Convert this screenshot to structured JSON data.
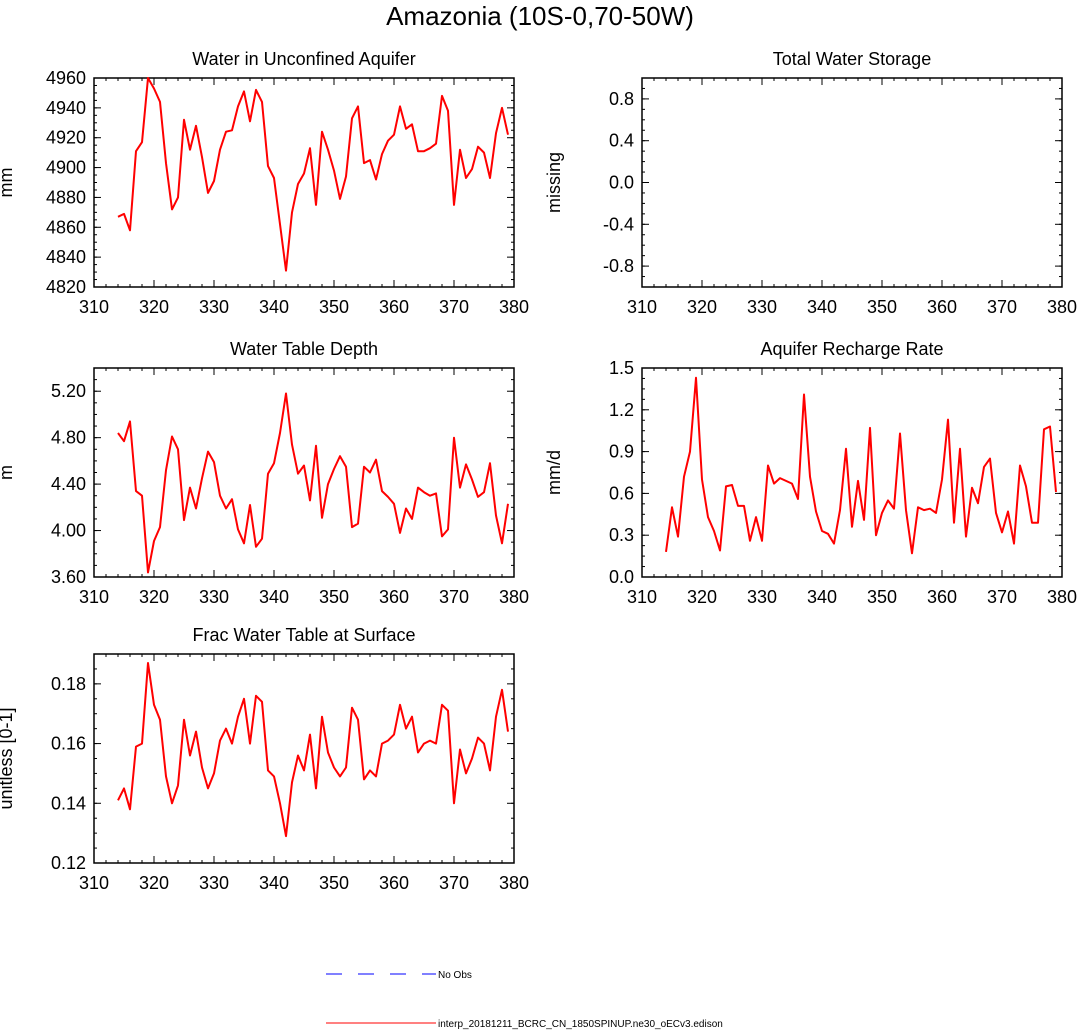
{
  "page_title": "Amazonia (10S-0,70-50W)",
  "colors": {
    "model_line": "#ff0000",
    "obs_line": "#0000ff",
    "axis": "#000000"
  },
  "legend": {
    "obs_label": "No Obs",
    "model_label": "interp_20181211_BCRC_CN_1850SPINUP.ne30_oECv3.edison"
  },
  "chart_data": [
    {
      "type": "line",
      "title": "Water in Unconfined Aquifer",
      "ylabel": "mm",
      "xlim": [
        310,
        380
      ],
      "ylim": [
        4820,
        4960
      ],
      "xticks": [
        310,
        320,
        330,
        340,
        350,
        360,
        370,
        380
      ],
      "yticks": [
        4820,
        4840,
        4860,
        4880,
        4900,
        4920,
        4940,
        4960
      ],
      "ytick_labels": [
        "4820",
        "4840",
        "4860",
        "4880",
        "4900",
        "4920",
        "4940",
        "4960"
      ],
      "series": [
        {
          "x": [
            314,
            315,
            316,
            317,
            318,
            319,
            320,
            321,
            322,
            323,
            324,
            325,
            326,
            327,
            328,
            329,
            330,
            331,
            332,
            333,
            334,
            335,
            336,
            337,
            338,
            339,
            340,
            341,
            342,
            343,
            344,
            345,
            346,
            347,
            348,
            349,
            350,
            351,
            352,
            353,
            354,
            355,
            356,
            357,
            358,
            359,
            360,
            361,
            362,
            363,
            364,
            365,
            366,
            367,
            368,
            369,
            370,
            371,
            372,
            373,
            374,
            375,
            376,
            377,
            378,
            379
          ],
          "y": [
            4867,
            4869,
            4858,
            4911,
            4917,
            4960,
            4953,
            4944,
            4903,
            4872,
            4880,
            4932,
            4912,
            4928,
            4907,
            4883,
            4891,
            4912,
            4924,
            4925,
            4941,
            4951,
            4931,
            4952,
            4944,
            4901,
            4893,
            4862,
            4831,
            4870,
            4889,
            4896,
            4913,
            4875,
            4924,
            4912,
            4898,
            4879,
            4894,
            4933,
            4941,
            4903,
            4905,
            4892,
            4909,
            4918,
            4922,
            4941,
            4926,
            4929,
            4911,
            4911,
            4913,
            4916,
            4948,
            4938,
            4875,
            4912,
            4893,
            4899,
            4914,
            4910,
            4893,
            4923,
            4940,
            4922
          ]
        }
      ]
    },
    {
      "type": "line",
      "title": "Total Water Storage",
      "ylabel": "missing",
      "xlim": [
        310,
        380
      ],
      "ylim": [
        -1,
        1
      ],
      "xticks": [
        310,
        320,
        330,
        340,
        350,
        360,
        370,
        380
      ],
      "yticks": [
        -0.8,
        -0.4,
        0.0,
        0.4,
        0.8
      ],
      "ytick_labels": [
        "-0.8",
        "-0.4",
        "0.0",
        "0.4",
        "0.8"
      ],
      "series": []
    },
    {
      "type": "line",
      "title": "Water Table Depth",
      "ylabel": "m",
      "xlim": [
        310,
        380
      ],
      "ylim": [
        3.6,
        5.4
      ],
      "xticks": [
        310,
        320,
        330,
        340,
        350,
        360,
        370,
        380
      ],
      "yticks": [
        3.6,
        4.0,
        4.4,
        4.8,
        5.2
      ],
      "ytick_labels": [
        "3.60",
        "4.00",
        "4.40",
        "4.80",
        "5.20"
      ],
      "series": [
        {
          "x": [
            314,
            315,
            316,
            317,
            318,
            319,
            320,
            321,
            322,
            323,
            324,
            325,
            326,
            327,
            328,
            329,
            330,
            331,
            332,
            333,
            334,
            335,
            336,
            337,
            338,
            339,
            340,
            341,
            342,
            343,
            344,
            345,
            346,
            347,
            348,
            349,
            350,
            351,
            352,
            353,
            354,
            355,
            356,
            357,
            358,
            359,
            360,
            361,
            362,
            363,
            364,
            365,
            366,
            367,
            368,
            369,
            370,
            371,
            372,
            373,
            374,
            375,
            376,
            377,
            378,
            379
          ],
          "y": [
            4.84,
            4.77,
            4.94,
            4.34,
            4.3,
            3.64,
            3.91,
            4.03,
            4.52,
            4.81,
            4.7,
            4.09,
            4.37,
            4.19,
            4.45,
            4.68,
            4.59,
            4.3,
            4.19,
            4.27,
            4.01,
            3.89,
            4.22,
            3.86,
            3.93,
            4.49,
            4.58,
            4.84,
            5.18,
            4.74,
            4.49,
            4.56,
            4.26,
            4.73,
            4.11,
            4.4,
            4.53,
            4.64,
            4.55,
            4.03,
            4.06,
            4.55,
            4.5,
            4.61,
            4.34,
            4.29,
            4.23,
            3.98,
            4.19,
            4.1,
            4.37,
            4.33,
            4.3,
            4.32,
            3.95,
            4.01,
            4.8,
            4.37,
            4.57,
            4.44,
            4.29,
            4.33,
            4.58,
            4.13,
            3.89,
            4.23
          ]
        }
      ]
    },
    {
      "type": "line",
      "title": "Aquifer Recharge Rate",
      "ylabel": "mm/d",
      "xlim": [
        310,
        380
      ],
      "ylim": [
        0,
        1.5
      ],
      "xticks": [
        310,
        320,
        330,
        340,
        350,
        360,
        370,
        380
      ],
      "yticks": [
        0.0,
        0.3,
        0.6,
        0.9,
        1.2,
        1.5
      ],
      "ytick_labels": [
        "0.0",
        "0.3",
        "0.6",
        "0.9",
        "1.2",
        "1.5"
      ],
      "series": [
        {
          "x": [
            314,
            315,
            316,
            317,
            318,
            319,
            320,
            321,
            322,
            323,
            324,
            325,
            326,
            327,
            328,
            329,
            330,
            331,
            332,
            333,
            334,
            335,
            336,
            337,
            338,
            339,
            340,
            341,
            342,
            343,
            344,
            345,
            346,
            347,
            348,
            349,
            350,
            351,
            352,
            353,
            354,
            355,
            356,
            357,
            358,
            359,
            360,
            361,
            362,
            363,
            364,
            365,
            366,
            367,
            368,
            369,
            370,
            371,
            372,
            373,
            374,
            375,
            376,
            377,
            378,
            379
          ],
          "y": [
            0.18,
            0.5,
            0.29,
            0.72,
            0.9,
            1.43,
            0.7,
            0.43,
            0.33,
            0.19,
            0.65,
            0.66,
            0.51,
            0.51,
            0.26,
            0.43,
            0.26,
            0.8,
            0.67,
            0.71,
            0.69,
            0.67,
            0.56,
            1.31,
            0.72,
            0.47,
            0.33,
            0.31,
            0.24,
            0.48,
            0.92,
            0.36,
            0.69,
            0.41,
            1.07,
            0.3,
            0.46,
            0.55,
            0.49,
            1.03,
            0.48,
            0.17,
            0.5,
            0.48,
            0.49,
            0.46,
            0.7,
            1.13,
            0.39,
            0.92,
            0.29,
            0.64,
            0.53,
            0.79,
            0.85,
            0.46,
            0.32,
            0.47,
            0.24,
            0.8,
            0.65,
            0.39,
            0.39,
            1.06,
            1.08,
            0.61
          ]
        }
      ]
    },
    {
      "type": "line",
      "title": "Frac Water Table at Surface",
      "ylabel": "unitless [0-1]",
      "xlim": [
        310,
        380
      ],
      "ylim": [
        0.12,
        0.19
      ],
      "xticks": [
        310,
        320,
        330,
        340,
        350,
        360,
        370,
        380
      ],
      "yticks": [
        0.12,
        0.14,
        0.16,
        0.18
      ],
      "ytick_labels": [
        "0.12",
        "0.14",
        "0.16",
        "0.18"
      ],
      "series": [
        {
          "x": [
            314,
            315,
            316,
            317,
            318,
            319,
            320,
            321,
            322,
            323,
            324,
            325,
            326,
            327,
            328,
            329,
            330,
            331,
            332,
            333,
            334,
            335,
            336,
            337,
            338,
            339,
            340,
            341,
            342,
            343,
            344,
            345,
            346,
            347,
            348,
            349,
            350,
            351,
            352,
            353,
            354,
            355,
            356,
            357,
            358,
            359,
            360,
            361,
            362,
            363,
            364,
            365,
            366,
            367,
            368,
            369,
            370,
            371,
            372,
            373,
            374,
            375,
            376,
            377,
            378,
            379
          ],
          "y": [
            0.141,
            0.145,
            0.138,
            0.159,
            0.16,
            0.187,
            0.173,
            0.168,
            0.149,
            0.14,
            0.146,
            0.168,
            0.156,
            0.164,
            0.152,
            0.145,
            0.15,
            0.161,
            0.165,
            0.16,
            0.169,
            0.175,
            0.16,
            0.176,
            0.174,
            0.151,
            0.149,
            0.14,
            0.129,
            0.147,
            0.156,
            0.151,
            0.163,
            0.145,
            0.169,
            0.157,
            0.152,
            0.149,
            0.152,
            0.172,
            0.168,
            0.148,
            0.151,
            0.149,
            0.16,
            0.161,
            0.163,
            0.173,
            0.165,
            0.169,
            0.157,
            0.16,
            0.161,
            0.16,
            0.173,
            0.171,
            0.14,
            0.158,
            0.15,
            0.155,
            0.162,
            0.16,
            0.151,
            0.169,
            0.178,
            0.164
          ]
        }
      ]
    }
  ]
}
